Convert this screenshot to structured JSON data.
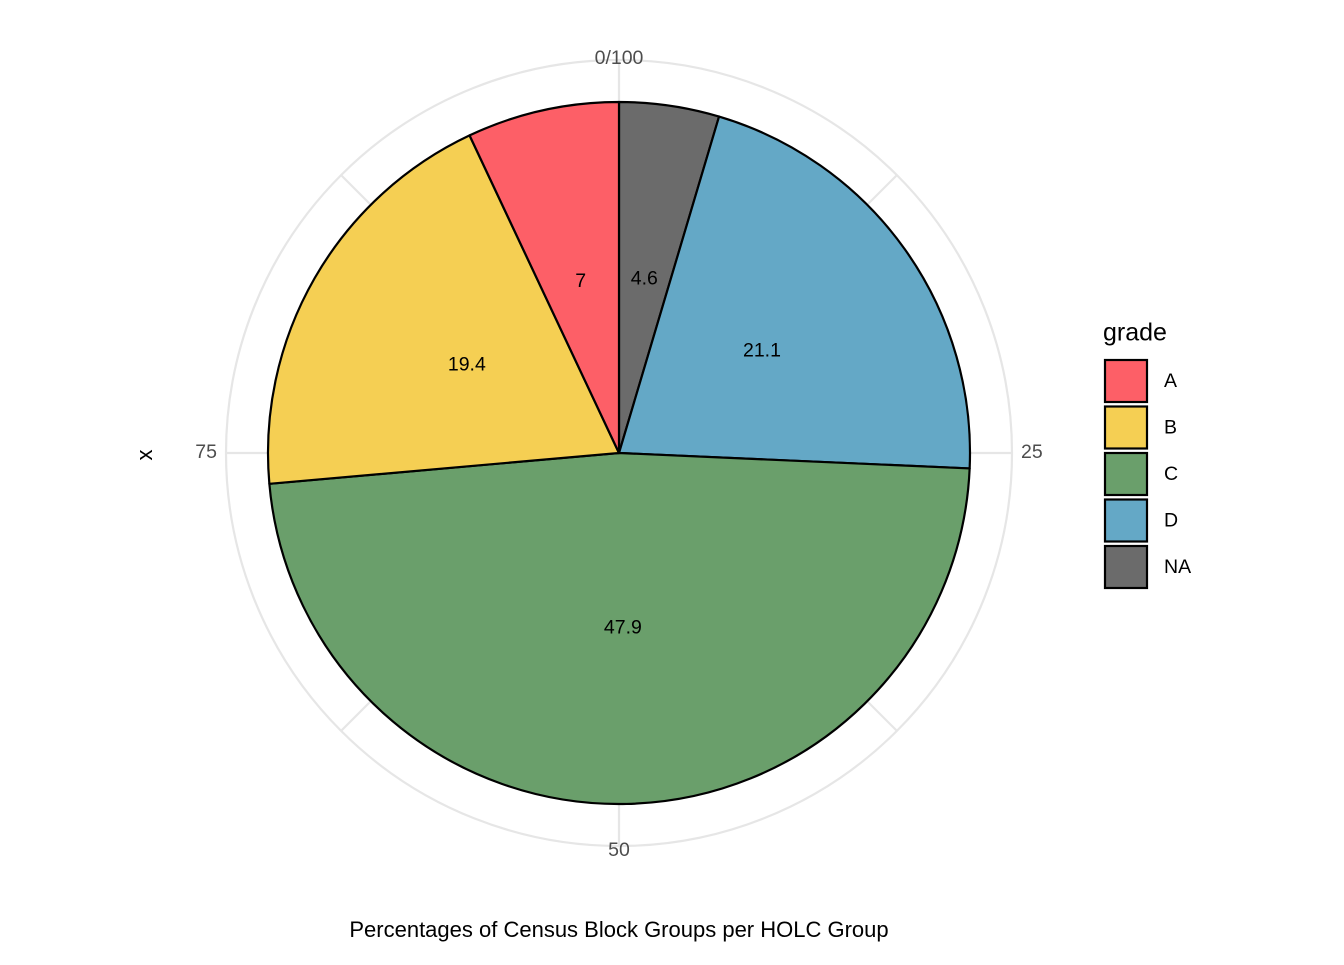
{
  "chart_data": {
    "type": "pie",
    "title": "",
    "caption": "Percentages of Census Block Groups per HOLC Group",
    "ylabel": "x",
    "theta_ticks": [
      "0/100",
      "25",
      "50",
      "75"
    ],
    "theta_tick_values": [
      0,
      25,
      50,
      75
    ],
    "grid": true,
    "legend": {
      "title": "grade",
      "position": "right"
    },
    "slices": [
      {
        "name": "NA",
        "value": 4.6,
        "label": "4.6",
        "color": "#6b6b6b"
      },
      {
        "name": "D",
        "value": 21.1,
        "label": "21.1",
        "color": "#64a8c6"
      },
      {
        "name": "C",
        "value": 47.9,
        "label": "47.9",
        "color": "#6a9f6b"
      },
      {
        "name": "B",
        "value": 19.4,
        "label": "19.4",
        "color": "#f5cf53"
      },
      {
        "name": "A",
        "value": 7,
        "label": "7",
        "color": "#fd5f67"
      }
    ],
    "legend_entries": [
      {
        "label": "A",
        "color": "#fd5f67"
      },
      {
        "label": "B",
        "color": "#f5cf53"
      },
      {
        "label": "C",
        "color": "#6a9f6b"
      },
      {
        "label": "D",
        "color": "#64a8c6"
      },
      {
        "label": "NA",
        "color": "#6b6b6b"
      }
    ]
  }
}
